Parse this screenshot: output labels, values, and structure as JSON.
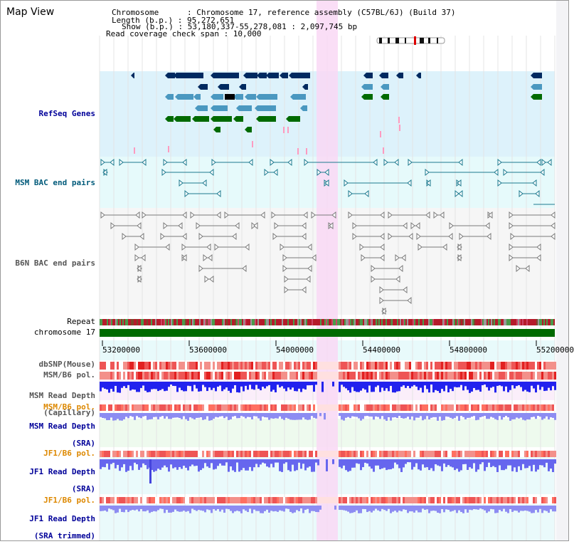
{
  "page_title": "Map View",
  "info": {
    "chromosome": "Chromosome      : Chromosome 17, reference assembly (C57BL/6J) (Build 37)",
    "length": "Length (b.p.) : 95,272,651",
    "show": "Show (b.p.) : 53,180,337-55,278,081 : 2,097,745 bp",
    "span": "Read coverage check span : 10,000"
  },
  "tracks": {
    "refseq": "RefSeq Genes",
    "msm_bac": "MSM BAC end pairs",
    "b6n_bac": "B6N BAC end pairs",
    "repeat": "Repeat",
    "chromosome": "chromosome 17",
    "dbsnp": "dbSNP(Mouse)",
    "msm_b6_pol1": "MSM/B6 pol.",
    "msm_depth_cap_1": "MSM Read Depth",
    "msm_depth_cap_2": "(Capillary)",
    "msm_b6_pol2": "MSM/B6 pol.",
    "msm_depth_sra_1": "MSM Read Depth",
    "msm_depth_sra_2": "(SRA)",
    "jf1_pol1": "JF1/B6 pol.",
    "jf1_depth_1": "JF1 Read Depth",
    "jf1_depth_2": "(SRA)",
    "jf1_pol2": "JF1/B6 pol.",
    "jf1_trim_1": "JF1 Read Depth",
    "jf1_trim_2": "(SRA trimmed)"
  },
  "axis": {
    "ticks": [
      "53200000",
      "53600000",
      "54000000",
      "54400000",
      "54800000",
      "55200000"
    ]
  },
  "colors": {
    "refseq_bg": "#ddf2fb",
    "msm_bg": "#e6fafb",
    "b6n_bg": "#f6f6f6",
    "highlight": "#f9d8f4",
    "gene_navy": "#002a60",
    "gene_steel": "#4a98c0",
    "gene_green": "#006a00",
    "msm_feature": "#1d7a8f",
    "b6n_feature": "#7a7a7a",
    "depth_blue": "#2222ee",
    "depth_sra": "#8d8cf2",
    "label_dark_blue": "#000099",
    "label_teal": "#005a7a",
    "label_orange": "#dd8800"
  }
}
